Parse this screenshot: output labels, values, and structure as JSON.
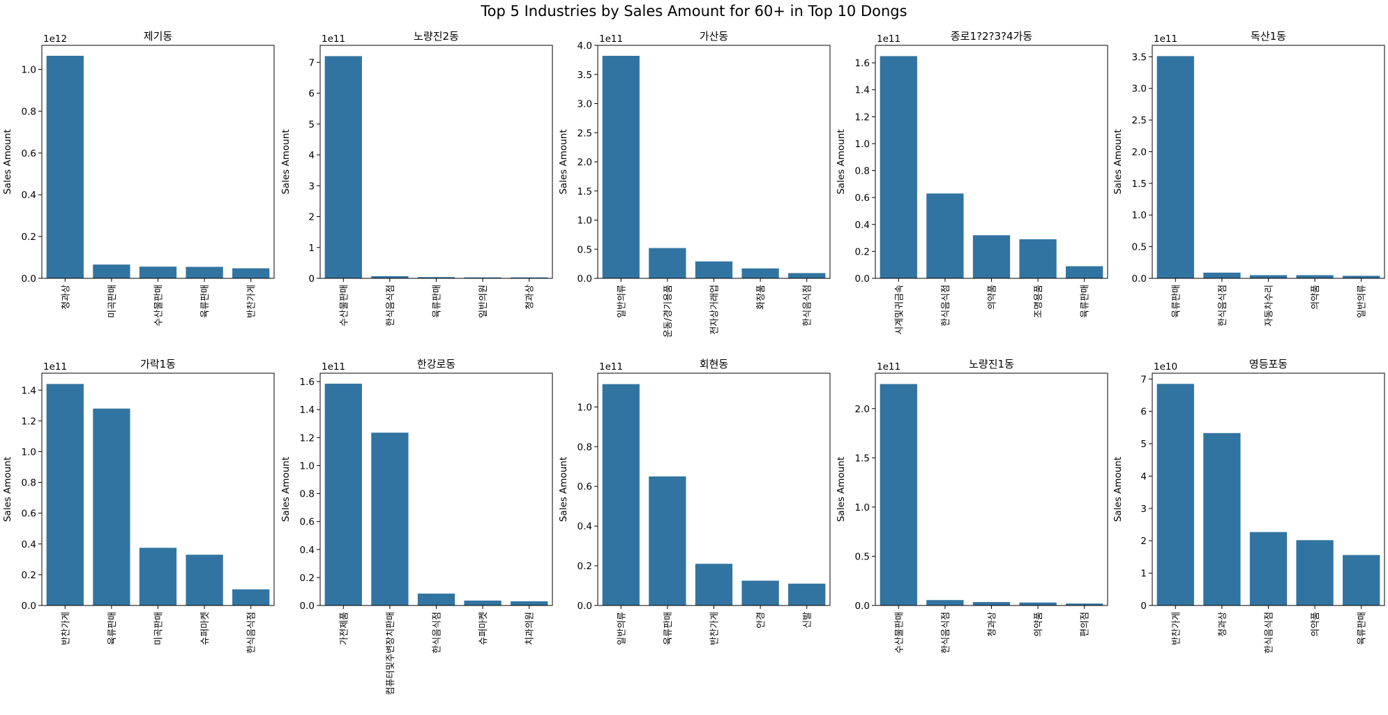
{
  "figure": {
    "suptitle": "Top 5 Industries by Sales Amount for 60+ in Top 10 Dongs",
    "bar_color": "#3274a1"
  },
  "chart_data": [
    {
      "type": "bar",
      "title": "제기동",
      "xlabel": "",
      "ylabel": "Sales Amount",
      "offset_label": "1e12",
      "scale": 1000000000000.0,
      "ylim": [
        0,
        1.115
      ],
      "yticks": [
        0.0,
        0.2,
        0.4,
        0.6,
        0.8,
        1.0
      ],
      "categories": [
        "청과상",
        "미곡판매",
        "수산물판매",
        "육류판매",
        "반찬가게"
      ],
      "values": [
        1.065,
        0.066,
        0.056,
        0.055,
        0.048
      ]
    },
    {
      "type": "bar",
      "title": "노량진2동",
      "xlabel": "",
      "ylabel": "Sales Amount",
      "offset_label": "1e11",
      "scale": 100000000000.0,
      "ylim": [
        0,
        7.55
      ],
      "yticks": [
        0,
        1,
        2,
        3,
        4,
        5,
        6,
        7
      ],
      "categories": [
        "수산물판매",
        "한식음식점",
        "육류판매",
        "일반의원",
        "청과상"
      ],
      "values": [
        7.2,
        0.07,
        0.04,
        0.03,
        0.03
      ]
    },
    {
      "type": "bar",
      "title": "가산동",
      "xlabel": "",
      "ylabel": "Sales Amount",
      "offset_label": "1e11",
      "scale": 100000000000.0,
      "ylim": [
        0,
        4.0
      ],
      "yticks": [
        0.0,
        0.5,
        1.0,
        1.5,
        2.0,
        2.5,
        3.0,
        3.5,
        4.0
      ],
      "categories": [
        "일반의류",
        "운동/경기용품",
        "전자상거래업",
        "화장품",
        "한식음식점"
      ],
      "values": [
        3.82,
        0.52,
        0.29,
        0.17,
        0.09
      ]
    },
    {
      "type": "bar",
      "title": "종로1?2?3?4가동",
      "xlabel": "",
      "ylabel": "Sales Amount",
      "offset_label": "1e11",
      "scale": 100000000000.0,
      "ylim": [
        0,
        1.73
      ],
      "yticks": [
        0.0,
        0.2,
        0.4,
        0.6,
        0.8,
        1.0,
        1.2,
        1.4,
        1.6
      ],
      "categories": [
        "시계및귀금속",
        "한식음식점",
        "의약품",
        "조명용품",
        "육류판매"
      ],
      "values": [
        1.65,
        0.63,
        0.32,
        0.29,
        0.09
      ]
    },
    {
      "type": "bar",
      "title": "독산1동",
      "xlabel": "",
      "ylabel": "Sales Amount",
      "offset_label": "1e11",
      "scale": 100000000000.0,
      "ylim": [
        0,
        3.68
      ],
      "yticks": [
        0.0,
        0.5,
        1.0,
        1.5,
        2.0,
        2.5,
        3.0,
        3.5
      ],
      "categories": [
        "육류판매",
        "한식음식점",
        "자동차수리",
        "의약품",
        "일반의류"
      ],
      "values": [
        3.51,
        0.09,
        0.05,
        0.05,
        0.04
      ]
    },
    {
      "type": "bar",
      "title": "가락1동",
      "xlabel": "",
      "ylabel": "Sales Amount",
      "offset_label": "1e11",
      "scale": 100000000000.0,
      "ylim": [
        0,
        1.51
      ],
      "yticks": [
        0.0,
        0.2,
        0.4,
        0.6,
        0.8,
        1.0,
        1.2,
        1.4
      ],
      "categories": [
        "반찬가게",
        "육류판매",
        "미곡판매",
        "슈퍼마켓",
        "한식음식점"
      ],
      "values": [
        1.44,
        1.28,
        0.375,
        0.33,
        0.105
      ]
    },
    {
      "type": "bar",
      "title": "한강로동",
      "xlabel": "",
      "ylabel": "Sales Amount",
      "offset_label": "1e11",
      "scale": 100000000000.0,
      "ylim": [
        0,
        1.66
      ],
      "yticks": [
        0.0,
        0.2,
        0.4,
        0.6,
        0.8,
        1.0,
        1.2,
        1.4,
        1.6
      ],
      "categories": [
        "가전제품",
        "컴퓨터및주변장치판매",
        "한식음식점",
        "슈퍼마켓",
        "치과의원"
      ],
      "values": [
        1.585,
        1.235,
        0.085,
        0.035,
        0.03
      ]
    },
    {
      "type": "bar",
      "title": "회현동",
      "xlabel": "",
      "ylabel": "Sales Amount",
      "offset_label": "1e11",
      "scale": 100000000000.0,
      "ylim": [
        0,
        1.17
      ],
      "yticks": [
        0.0,
        0.2,
        0.4,
        0.6,
        0.8,
        1.0
      ],
      "categories": [
        "일반의류",
        "육류판매",
        "반찬가게",
        "안경",
        "신발"
      ],
      "values": [
        1.115,
        0.65,
        0.21,
        0.125,
        0.11
      ]
    },
    {
      "type": "bar",
      "title": "노량진1동",
      "xlabel": "",
      "ylabel": "Sales Amount",
      "offset_label": "1e11",
      "scale": 100000000000.0,
      "ylim": [
        0,
        2.36
      ],
      "yticks": [
        0.0,
        0.5,
        1.0,
        1.5,
        2.0
      ],
      "categories": [
        "수산물판매",
        "한식음식점",
        "청과상",
        "의약품",
        "편의점"
      ],
      "values": [
        2.25,
        0.055,
        0.035,
        0.03,
        0.02
      ]
    },
    {
      "type": "bar",
      "title": "영등포동",
      "xlabel": "",
      "ylabel": "Sales Amount",
      "offset_label": "1e10",
      "scale": 10000000000.0,
      "ylim": [
        0,
        7.18
      ],
      "yticks": [
        0,
        1,
        2,
        3,
        4,
        5,
        6,
        7
      ],
      "categories": [
        "반찬가게",
        "청과상",
        "한식음식점",
        "의약품",
        "육류판매"
      ],
      "values": [
        6.85,
        5.33,
        2.27,
        2.02,
        1.56
      ]
    }
  ]
}
